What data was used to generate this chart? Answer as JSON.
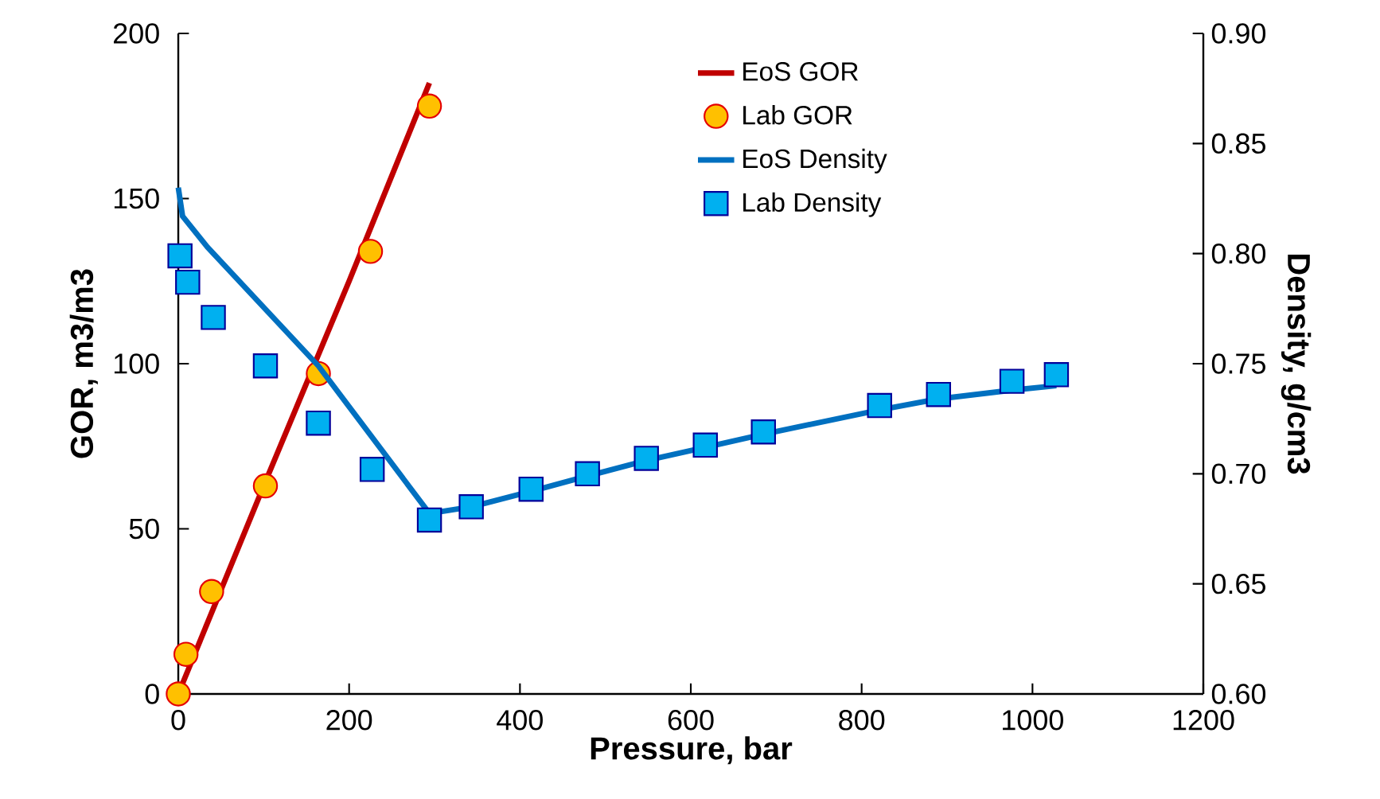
{
  "chart_data": {
    "type": "line",
    "xlabel": "Pressure, bar",
    "ylabel": "GOR, m3/m3",
    "y2label": "Density, g/cm3",
    "xlim": [
      0,
      1200
    ],
    "xticks": [
      0,
      200,
      400,
      600,
      800,
      1000,
      1200
    ],
    "ylim": [
      0,
      200
    ],
    "yticks": [
      0,
      50,
      100,
      150,
      200
    ],
    "y2lim": [
      0.6,
      0.9
    ],
    "y2ticks": [
      {
        "value": 0.6,
        "label": "0.60"
      },
      {
        "value": 0.65,
        "label": "0.65"
      },
      {
        "value": 0.7,
        "label": "0.70"
      },
      {
        "value": 0.75,
        "label": "0.75"
      },
      {
        "value": 0.8,
        "label": "0.80"
      },
      {
        "value": 0.85,
        "label": "0.85"
      },
      {
        "value": 0.9,
        "label": "0.90"
      }
    ],
    "legend": "top",
    "grid": false,
    "series": [
      {
        "name": "EoS GOR",
        "marker": "none",
        "color": "#c00000",
        "x": [
          0,
          100,
          200,
          294
        ],
        "values": [
          0,
          63,
          125,
          185
        ]
      },
      {
        "name": "Lab GOR",
        "type": "scatter",
        "marker": "circle",
        "color": "#ffc000",
        "x": [
          0,
          9,
          39,
          102,
          164,
          225,
          294
        ],
        "values": [
          0,
          12,
          31,
          63,
          97,
          134,
          178
        ]
      },
      {
        "name": "EoS Density",
        "marker": "none",
        "color": "#0070c0",
        "axis": "y2",
        "x": [
          0,
          5,
          34,
          164,
          294,
          343,
          413,
          479,
          548,
          617,
          685,
          821,
          890,
          976,
          1028
        ],
        "values": [
          0.83,
          0.817,
          0.803,
          0.749,
          0.682,
          0.685,
          0.692,
          0.699,
          0.706,
          0.712,
          0.718,
          0.729,
          0.734,
          0.738,
          0.74
        ]
      },
      {
        "name": "Lab Density",
        "type": "scatter",
        "marker": "square",
        "color": "#00b0f0",
        "axis": "y2",
        "x": [
          2,
          11,
          41,
          102,
          164,
          227,
          294,
          343,
          413,
          479,
          548,
          617,
          685,
          821,
          890,
          976,
          1028
        ],
        "values": [
          0.799,
          0.787,
          0.771,
          0.749,
          0.723,
          0.702,
          0.679,
          0.685,
          0.693,
          0.7,
          0.707,
          0.713,
          0.719,
          0.731,
          0.736,
          0.742,
          0.745
        ]
      }
    ]
  }
}
